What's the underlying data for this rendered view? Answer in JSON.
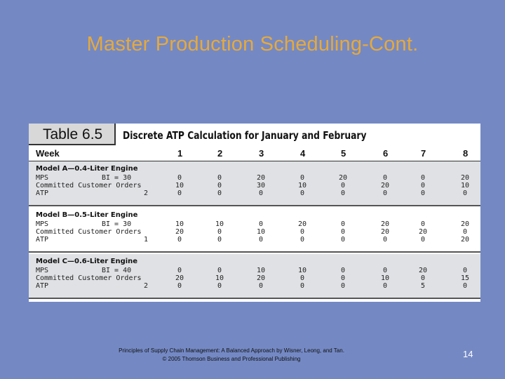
{
  "slide": {
    "title": "Master Production Scheduling-Cont.",
    "footer_line1": "Principles of Supply Chain Management: A Balanced Approach by Wisner, Leong, and Tan.",
    "footer_line2": "© 2005 Thomson Business and Professional Publishing",
    "page_number": "14"
  },
  "table": {
    "label": "Table 6.5",
    "caption": "Discrete ATP Calculation for January and February",
    "week_label": "Week",
    "weeks": [
      "1",
      "2",
      "3",
      "4",
      "5",
      "6",
      "7",
      "8"
    ],
    "models": [
      {
        "name": "Model A—0.4-Liter Engine",
        "mps_label": "MPS",
        "bi_label": "BI = 30",
        "orders_label": "Committed Customer Orders",
        "atp_label": "ATP",
        "onhand": "2",
        "mps": [
          "0",
          "0",
          "20",
          "0",
          "20",
          "0",
          "0",
          "20"
        ],
        "orders": [
          "10",
          "0",
          "30",
          "10",
          "0",
          "20",
          "0",
          "10"
        ],
        "atp": [
          "0",
          "0",
          "0",
          "0",
          "0",
          "0",
          "0",
          "0"
        ]
      },
      {
        "name": "Model B—0.5-Liter Engine",
        "mps_label": "MPS",
        "bi_label": "BI = 30",
        "orders_label": "Committed Customer Orders",
        "atp_label": "ATP",
        "onhand": "1",
        "mps": [
          "10",
          "10",
          "0",
          "20",
          "0",
          "20",
          "0",
          "20"
        ],
        "orders": [
          "20",
          "0",
          "10",
          "0",
          "0",
          "20",
          "20",
          "0"
        ],
        "atp": [
          "0",
          "0",
          "0",
          "0",
          "0",
          "0",
          "0",
          "20"
        ]
      },
      {
        "name": "Model C—0.6-Liter Engine",
        "mps_label": "MPS",
        "bi_label": "BI = 40",
        "orders_label": "Committed Customer Orders",
        "atp_label": "ATP",
        "onhand": "2",
        "mps": [
          "0",
          "0",
          "10",
          "10",
          "0",
          "0",
          "20",
          "0"
        ],
        "orders": [
          "20",
          "10",
          "20",
          "0",
          "0",
          "10",
          "0",
          "15"
        ],
        "atp": [
          "0",
          "0",
          "0",
          "0",
          "0",
          "0",
          "5",
          "0"
        ]
      }
    ]
  }
}
